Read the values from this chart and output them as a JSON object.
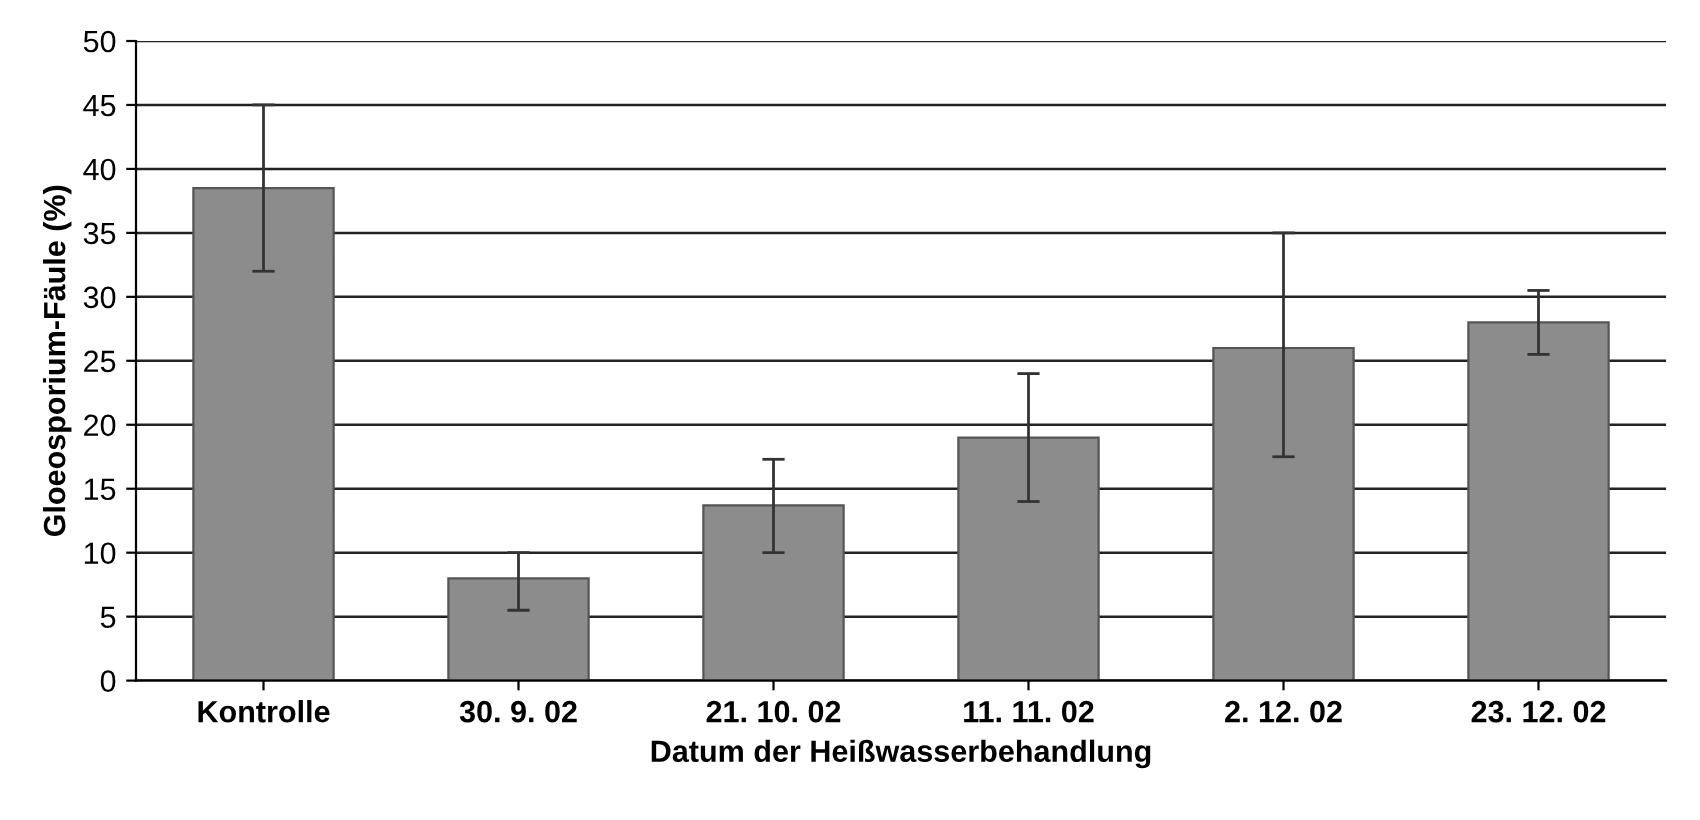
{
  "chart_data": {
    "type": "bar",
    "xlabel": "Datum der Heißwasserbehandlung",
    "ylabel": "Gloeosporium-Fäule (%)",
    "categories": [
      "Kontrolle",
      "30. 9. 02",
      "21. 10. 02",
      "11. 11. 02",
      "2. 12. 02",
      "23. 12. 02"
    ],
    "series": [
      {
        "color": "#8c8c8c",
        "values": [
          38.5,
          8,
          13.7,
          19,
          26,
          28
        ],
        "errors": [
          [
            32,
            45
          ],
          [
            5.5,
            10
          ],
          [
            10,
            17.3
          ],
          [
            14,
            24
          ],
          [
            17.5,
            35
          ],
          [
            25.5,
            30.5
          ]
        ]
      }
    ],
    "ylim": [
      0,
      50
    ],
    "yticks": [
      0,
      5,
      10,
      15,
      20,
      25,
      30,
      35,
      40,
      45,
      50
    ],
    "grid": "y",
    "legend": false
  }
}
